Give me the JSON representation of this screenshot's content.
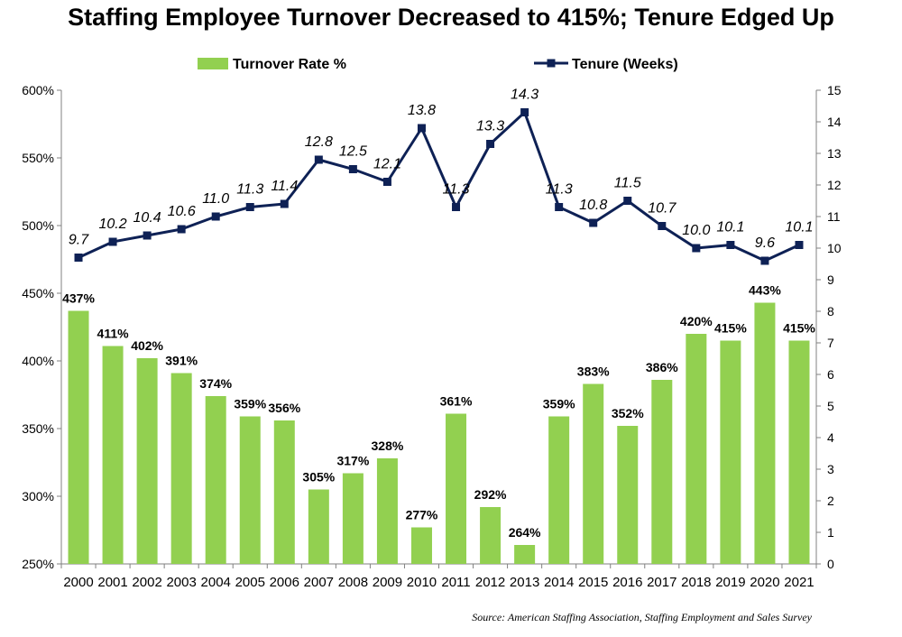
{
  "chart_data": {
    "type": "bar",
    "title": "Staffing Employee Turnover Decreased to 415%; Tenure Edged Up",
    "categories": [
      "2000",
      "2001",
      "2002",
      "2003",
      "2004",
      "2005",
      "2006",
      "2007",
      "2008",
      "2009",
      "2010",
      "2011",
      "2012",
      "2013",
      "2014",
      "2015",
      "2016",
      "2017",
      "2018",
      "2019",
      "2020",
      "2021"
    ],
    "series": [
      {
        "name": "Turnover Rate %",
        "type": "bar",
        "axis": "left",
        "color": "#92D050",
        "values": [
          437,
          411,
          402,
          391,
          374,
          359,
          356,
          305,
          317,
          328,
          277,
          361,
          292,
          264,
          359,
          383,
          352,
          386,
          420,
          415,
          443,
          415
        ],
        "labels": [
          "437%",
          "411%",
          "402%",
          "391%",
          "374%",
          "359%",
          "356%",
          "305%",
          "317%",
          "328%",
          "277%",
          "361%",
          "292%",
          "264%",
          "359%",
          "383%",
          "352%",
          "386%",
          "420%",
          "415%",
          "443%",
          "415%"
        ]
      },
      {
        "name": "Tenure (Weeks)",
        "type": "line",
        "axis": "right",
        "color": "#0E2155",
        "marker": "square",
        "values": [
          9.7,
          10.2,
          10.4,
          10.6,
          11.0,
          11.3,
          11.4,
          12.8,
          12.5,
          12.1,
          13.8,
          11.3,
          13.3,
          14.3,
          11.3,
          10.8,
          11.5,
          10.7,
          10.0,
          10.1,
          9.6,
          10.1
        ],
        "labels": [
          "9.7",
          "10.2",
          "10.4",
          "10.6",
          "11.0",
          "11.3",
          "11.4",
          "12.8",
          "12.5",
          "12.1",
          "13.8",
          "11.3",
          "13.3",
          "14.3",
          "11.3",
          "10.8",
          "11.5",
          "10.7",
          "10.0",
          "10.1",
          "9.6",
          "10.1"
        ]
      }
    ],
    "y_left": {
      "lim": [
        250,
        600
      ],
      "ticks": [
        250,
        300,
        350,
        400,
        450,
        500,
        550,
        600
      ],
      "tick_labels": [
        "250%",
        "300%",
        "350%",
        "400%",
        "450%",
        "500%",
        "550%",
        "600%"
      ]
    },
    "y_right": {
      "lim": [
        0,
        15
      ],
      "ticks": [
        0,
        1,
        2,
        3,
        4,
        5,
        6,
        7,
        8,
        9,
        10,
        11,
        12,
        13,
        14,
        15
      ],
      "tick_labels": [
        "0",
        "1",
        "2",
        "3",
        "4",
        "5",
        "6",
        "7",
        "8",
        "9",
        "10",
        "11",
        "12",
        "13",
        "14",
        "15"
      ]
    },
    "grid": false,
    "legend": "top"
  },
  "source": "Source: American Staffing Association, Staffing Employment and Sales Survey"
}
